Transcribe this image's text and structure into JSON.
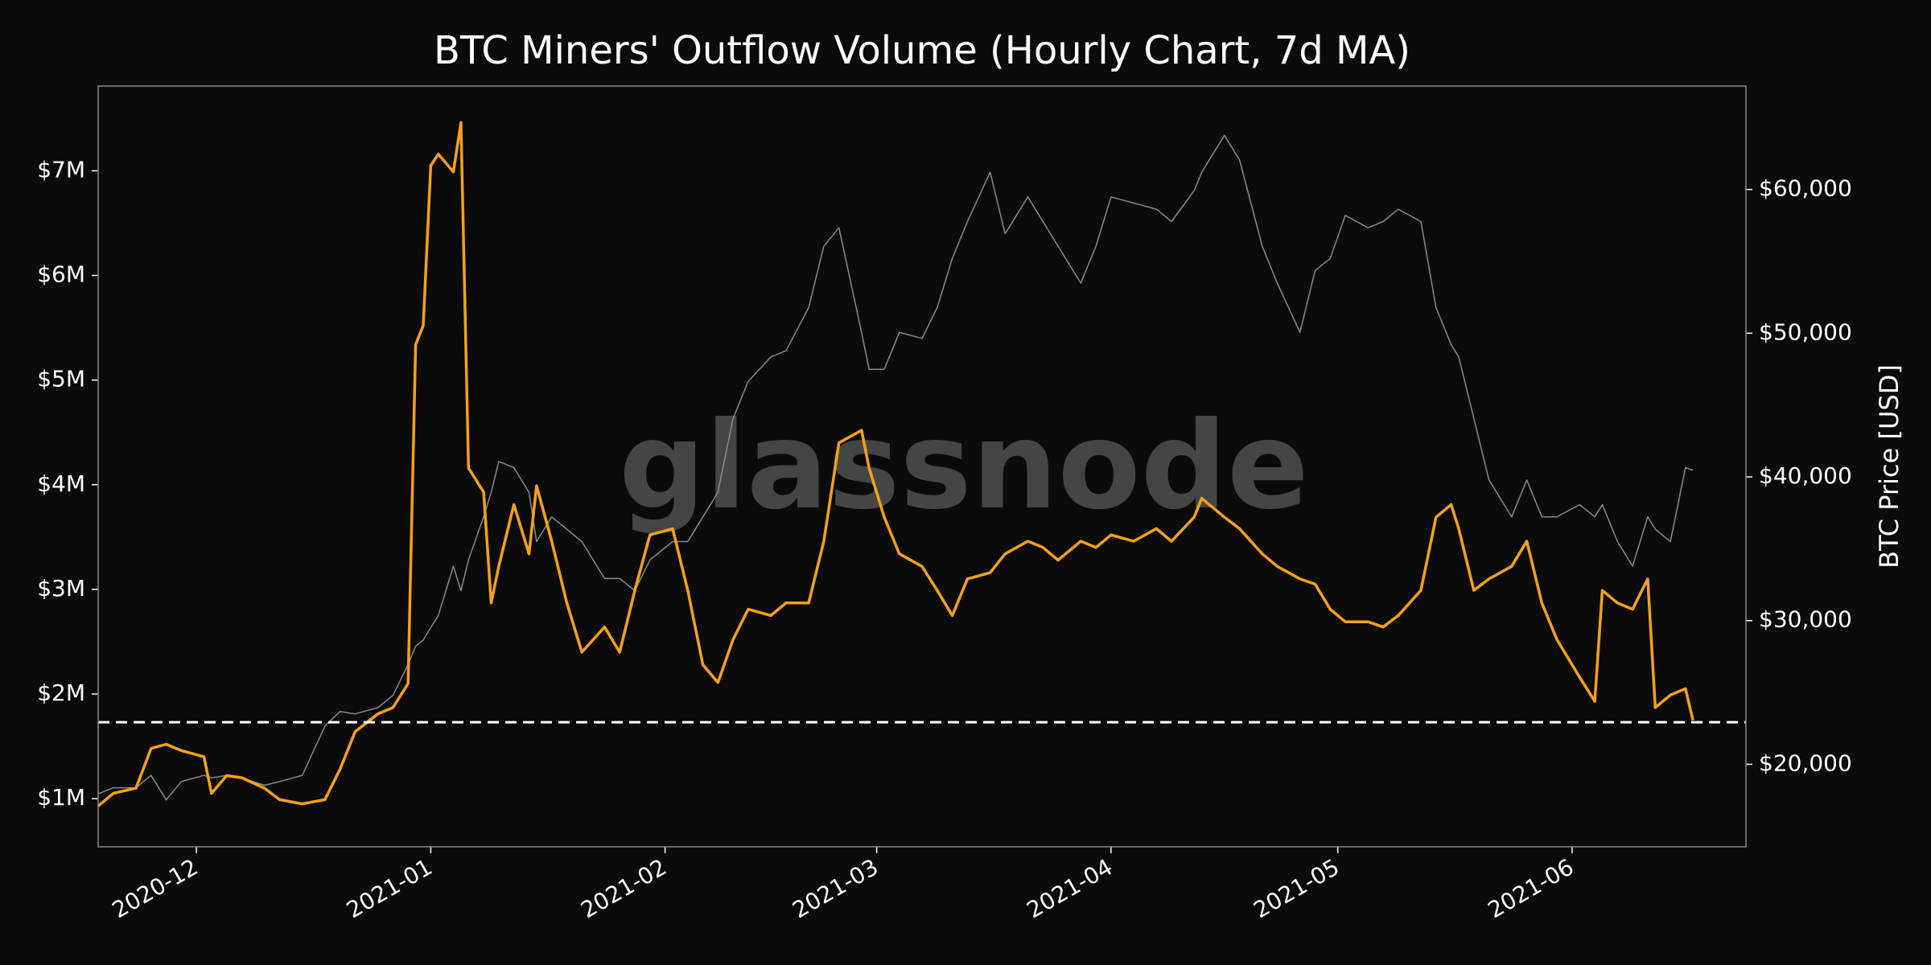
{
  "chart_data": {
    "type": "line",
    "title": "BTC Miners' Outflow Volume (Hourly Chart, 7d MA)",
    "watermark": "glassnode",
    "y2label": "BTC Price [USD]",
    "xlim": [
      "2020-11-18",
      "2021-06-24"
    ],
    "xticks": [
      {
        "value": "2020-12-01",
        "label": "2020-12"
      },
      {
        "value": "2021-01-01",
        "label": "2021-01"
      },
      {
        "value": "2021-02-01",
        "label": "2021-02"
      },
      {
        "value": "2021-03-01",
        "label": "2021-03"
      },
      {
        "value": "2021-04-01",
        "label": "2021-04"
      },
      {
        "value": "2021-05-01",
        "label": "2021-05"
      },
      {
        "value": "2021-06-01",
        "label": "2021-06"
      }
    ],
    "ylim": [
      540000,
      7810000
    ],
    "yticks": [
      {
        "value": 1000000,
        "label": "$1M"
      },
      {
        "value": 2000000,
        "label": "$2M"
      },
      {
        "value": 3000000,
        "label": "$3M"
      },
      {
        "value": 4000000,
        "label": "$4M"
      },
      {
        "value": 5000000,
        "label": "$5M"
      },
      {
        "value": 6000000,
        "label": "$6M"
      },
      {
        "value": 7000000,
        "label": "$7M"
      }
    ],
    "y2lim": [
      14260,
      67200
    ],
    "y2ticks": [
      {
        "value": 20000,
        "label": "$20,000"
      },
      {
        "value": 30000,
        "label": "$30,000"
      },
      {
        "value": 40000,
        "label": "$40,000"
      },
      {
        "value": 50000,
        "label": "$50,000"
      },
      {
        "value": 60000,
        "label": "$60,000"
      }
    ],
    "hline": {
      "value": 1730000,
      "color": "#ffffff"
    },
    "x": [
      "2020-11-18",
      "2020-11-20",
      "2020-11-23",
      "2020-11-25",
      "2020-11-27",
      "2020-11-29",
      "2020-12-02",
      "2020-12-03",
      "2020-12-05",
      "2020-12-07",
      "2020-12-10",
      "2020-12-12",
      "2020-12-15",
      "2020-12-18",
      "2020-12-20",
      "2020-12-22",
      "2020-12-25",
      "2020-12-27",
      "2020-12-29",
      "2020-12-30",
      "2020-12-31",
      "2021-01-01",
      "2021-01-02",
      "2021-01-04",
      "2021-01-05",
      "2021-01-06",
      "2021-01-08",
      "2021-01-09",
      "2021-01-10",
      "2021-01-12",
      "2021-01-14",
      "2021-01-15",
      "2021-01-17",
      "2021-01-19",
      "2021-01-21",
      "2021-01-24",
      "2021-01-26",
      "2021-01-28",
      "2021-01-30",
      "2021-02-02",
      "2021-02-04",
      "2021-02-06",
      "2021-02-08",
      "2021-02-10",
      "2021-02-12",
      "2021-02-15",
      "2021-02-17",
      "2021-02-20",
      "2021-02-22",
      "2021-02-24",
      "2021-02-27",
      "2021-02-28",
      "2021-03-02",
      "2021-03-04",
      "2021-03-07",
      "2021-03-09",
      "2021-03-11",
      "2021-03-13",
      "2021-03-16",
      "2021-03-18",
      "2021-03-21",
      "2021-03-23",
      "2021-03-25",
      "2021-03-28",
      "2021-03-30",
      "2021-04-01",
      "2021-04-04",
      "2021-04-07",
      "2021-04-09",
      "2021-04-12",
      "2021-04-13",
      "2021-04-16",
      "2021-04-18",
      "2021-04-21",
      "2021-04-23",
      "2021-04-26",
      "2021-04-28",
      "2021-04-30",
      "2021-05-02",
      "2021-05-05",
      "2021-05-07",
      "2021-05-09",
      "2021-05-12",
      "2021-05-14",
      "2021-05-16",
      "2021-05-17",
      "2021-05-19",
      "2021-05-21",
      "2021-05-24",
      "2021-05-26",
      "2021-05-28",
      "2021-05-30",
      "2021-06-02",
      "2021-06-04",
      "2021-06-05",
      "2021-06-07",
      "2021-06-09",
      "2021-06-11",
      "2021-06-12",
      "2021-06-14",
      "2021-06-16",
      "2021-06-17"
    ],
    "series": [
      {
        "name": "Miners' Outflow Volume",
        "color": "#f7a11a",
        "axis": "y",
        "values": [
          930000,
          1050000,
          1100000,
          1480000,
          1520000,
          1460000,
          1400000,
          1050000,
          1220000,
          1200000,
          1100000,
          990000,
          950000,
          990000,
          1280000,
          1640000,
          1810000,
          1870000,
          2100000,
          5340000,
          5520000,
          7050000,
          7160000,
          6990000,
          7460000,
          4160000,
          3930000,
          2870000,
          3220000,
          3810000,
          3340000,
          3990000,
          3460000,
          2870000,
          2400000,
          2640000,
          2400000,
          2990000,
          3520000,
          3580000,
          2990000,
          2280000,
          2110000,
          2520000,
          2810000,
          2750000,
          2870000,
          2870000,
          3460000,
          4400000,
          4520000,
          4160000,
          3690000,
          3340000,
          3220000,
          2990000,
          2750000,
          3100000,
          3160000,
          3340000,
          3460000,
          3400000,
          3280000,
          3460000,
          3400000,
          3520000,
          3460000,
          3580000,
          3460000,
          3690000,
          3870000,
          3690000,
          3580000,
          3340000,
          3220000,
          3100000,
          3050000,
          2810000,
          2690000,
          2690000,
          2640000,
          2750000,
          2990000,
          3690000,
          3810000,
          3580000,
          2990000,
          3100000,
          3220000,
          3460000,
          2870000,
          2520000,
          2160000,
          1930000,
          2990000,
          2870000,
          2810000,
          3100000,
          1870000,
          1990000,
          2050000,
          1750000
        ]
      },
      {
        "name": "BTC Price",
        "color": "#8a8a8a",
        "axis": "y2",
        "values": [
          17940,
          18370,
          18370,
          19230,
          17520,
          18800,
          19230,
          19060,
          19230,
          19060,
          18540,
          18800,
          19230,
          22660,
          23680,
          23510,
          23940,
          24800,
          26940,
          28220,
          28650,
          29510,
          30360,
          33790,
          32080,
          34220,
          37220,
          38930,
          41070,
          40640,
          38930,
          35500,
          37220,
          36360,
          35500,
          32930,
          32930,
          32080,
          34220,
          35500,
          35500,
          37220,
          38930,
          44070,
          46640,
          48350,
          48780,
          51780,
          56060,
          57340,
          50060,
          47490,
          47490,
          50060,
          49640,
          51780,
          55200,
          57770,
          61200,
          56920,
          59490,
          57770,
          56060,
          53490,
          56060,
          59490,
          59060,
          58630,
          57770,
          59920,
          61200,
          63770,
          62060,
          56060,
          53490,
          50060,
          54350,
          55200,
          58200,
          57340,
          57770,
          58630,
          57770,
          51780,
          49210,
          48350,
          44070,
          39790,
          37220,
          39790,
          37220,
          37220,
          38070,
          37220,
          38070,
          35500,
          33790,
          37220,
          36360,
          35500,
          40640,
          40470
        ]
      }
    ]
  }
}
